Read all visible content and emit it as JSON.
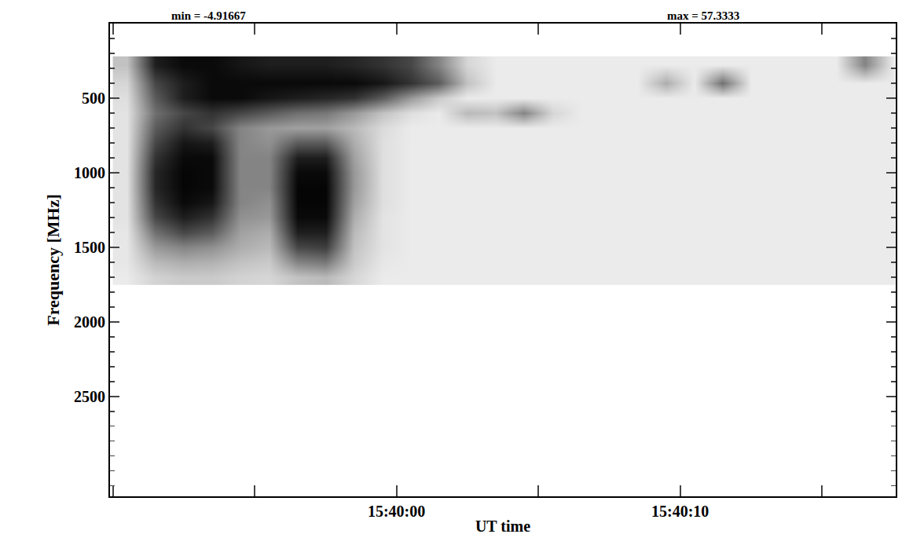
{
  "chart_data": {
    "type": "heatmap",
    "annotations": [
      "min = -4.91667",
      "max = 57.3333"
    ],
    "xlabel": "UT time",
    "ylabel": "Frequency [MHz]",
    "xlim": [
      56389.9,
      56417.6
    ],
    "xticks": [
      {
        "value": 56400,
        "label": "15:40:00"
      },
      {
        "value": 56410,
        "label": "15:40:10"
      }
    ],
    "ylim": [
      3170,
      0
    ],
    "yticks": [
      500,
      1000,
      1500,
      2000,
      2500
    ],
    "zlim": [
      -4.91667,
      57.3333
    ],
    "x": [
      56390.5,
      56391.5,
      56392.5,
      56393.5,
      56394.5,
      56395.5,
      56396.5,
      56397.5,
      56398.5,
      56399.5,
      56400.5,
      56401.5,
      56402.5,
      56403.5,
      56404.5,
      56405.5,
      56406.5,
      56407.5,
      56408.5,
      56409.5,
      56410.5,
      56411.5,
      56412.5,
      56413.5,
      56414.5,
      56415.5,
      56416.5,
      56417.5
    ],
    "y": [
      280,
      400,
      500,
      600,
      700,
      800,
      900,
      1000,
      1100,
      1200,
      1300,
      1400,
      1500,
      1600,
      1700
    ],
    "z": [
      [
        10,
        50,
        55,
        55,
        52,
        50,
        50,
        50,
        48,
        45,
        40,
        25,
        5,
        0,
        0,
        0,
        0,
        0,
        0,
        0,
        0,
        0,
        0,
        0,
        0,
        0,
        25,
        0
      ],
      [
        5,
        40,
        50,
        55,
        55,
        55,
        55,
        55,
        55,
        52,
        45,
        35,
        10,
        0,
        0,
        0,
        0,
        0,
        0,
        15,
        0,
        30,
        0,
        0,
        0,
        0,
        0,
        0
      ],
      [
        3,
        35,
        50,
        55,
        55,
        52,
        50,
        48,
        45,
        35,
        20,
        8,
        0,
        0,
        0,
        0,
        0,
        0,
        0,
        0,
        0,
        0,
        0,
        0,
        0,
        0,
        0,
        0
      ],
      [
        2,
        30,
        40,
        45,
        40,
        35,
        30,
        28,
        20,
        10,
        3,
        0,
        12,
        10,
        25,
        5,
        0,
        0,
        0,
        0,
        0,
        0,
        0,
        0,
        0,
        0,
        0,
        0
      ],
      [
        2,
        35,
        45,
        40,
        25,
        20,
        18,
        18,
        12,
        4,
        0,
        0,
        0,
        0,
        0,
        0,
        0,
        0,
        0,
        0,
        0,
        0,
        0,
        0,
        0,
        0,
        0,
        0
      ],
      [
        2,
        40,
        52,
        50,
        25,
        22,
        35,
        35,
        15,
        3,
        0,
        0,
        0,
        0,
        0,
        0,
        0,
        0,
        0,
        0,
        0,
        0,
        0,
        0,
        0,
        0,
        0,
        0
      ],
      [
        2,
        45,
        55,
        55,
        25,
        25,
        50,
        50,
        18,
        3,
        0,
        0,
        0,
        0,
        0,
        0,
        0,
        0,
        0,
        0,
        0,
        0,
        0,
        0,
        0,
        0,
        0,
        0
      ],
      [
        2,
        48,
        56,
        55,
        25,
        25,
        55,
        55,
        20,
        3,
        0,
        0,
        0,
        0,
        0,
        0,
        0,
        0,
        0,
        0,
        0,
        0,
        0,
        0,
        0,
        0,
        0,
        0
      ],
      [
        2,
        48,
        56,
        55,
        25,
        25,
        56,
        56,
        20,
        3,
        0,
        0,
        0,
        0,
        0,
        0,
        0,
        0,
        0,
        0,
        0,
        0,
        0,
        0,
        0,
        0,
        0,
        0
      ],
      [
        2,
        45,
        55,
        52,
        25,
        22,
        56,
        56,
        18,
        3,
        0,
        0,
        0,
        0,
        0,
        0,
        0,
        0,
        0,
        0,
        0,
        0,
        0,
        0,
        0,
        0,
        0,
        0
      ],
      [
        2,
        40,
        50,
        45,
        22,
        20,
        55,
        55,
        15,
        2,
        0,
        0,
        0,
        0,
        0,
        0,
        0,
        0,
        0,
        0,
        0,
        0,
        0,
        0,
        0,
        0,
        0,
        0
      ],
      [
        1,
        30,
        40,
        35,
        18,
        15,
        50,
        50,
        12,
        2,
        0,
        0,
        0,
        0,
        0,
        0,
        0,
        0,
        0,
        0,
        0,
        0,
        0,
        0,
        0,
        0,
        0,
        0
      ],
      [
        1,
        20,
        25,
        22,
        15,
        12,
        40,
        42,
        10,
        2,
        0,
        0,
        0,
        0,
        0,
        0,
        0,
        0,
        0,
        0,
        0,
        0,
        0,
        0,
        0,
        0,
        0,
        0
      ],
      [
        1,
        12,
        15,
        14,
        10,
        8,
        25,
        28,
        8,
        1,
        0,
        0,
        0,
        0,
        0,
        0,
        0,
        0,
        0,
        0,
        0,
        0,
        0,
        0,
        0,
        0,
        0,
        0
      ],
      [
        0,
        6,
        8,
        8,
        6,
        5,
        10,
        12,
        5,
        0,
        0,
        0,
        0,
        0,
        0,
        0,
        0,
        0,
        0,
        0,
        0,
        0,
        0,
        0,
        0,
        0,
        0,
        0
      ]
    ],
    "grid": false
  }
}
